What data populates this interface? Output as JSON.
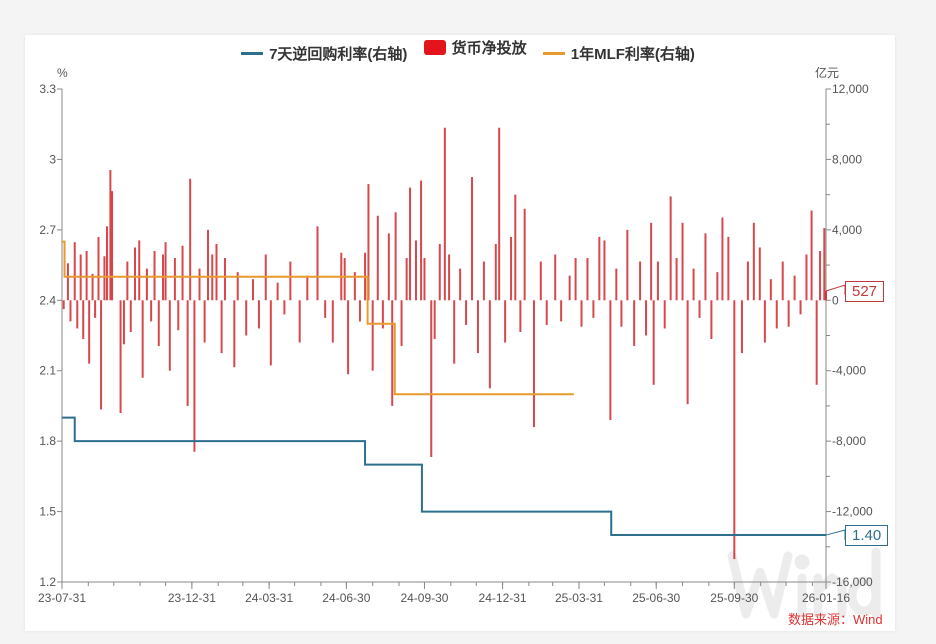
{
  "chart_data": {
    "type": "bar+line",
    "legend": {
      "position": "top",
      "items": [
        "7天逆回购利率(右轴)",
        "货币净投放",
        "1年MLF利率(右轴)"
      ]
    },
    "left_axis": {
      "unit": "%",
      "range": [
        1.2,
        3.3
      ],
      "ticks": [
        "3.3",
        "3",
        "2.7",
        "2.4",
        "2.1",
        "1.8",
        "1.5",
        "1.2"
      ]
    },
    "right_axis": {
      "unit": "亿元",
      "range": [
        -16000,
        12000
      ],
      "ticks": [
        "12,000",
        "8,000",
        "4,000",
        "0",
        "-4,000",
        "-8,000",
        "-12,000",
        "-16,000"
      ]
    },
    "x_axis": {
      "range": [
        "2023-07-31",
        "2026-01-16"
      ],
      "ticks": [
        "23-07-31",
        "23-12-31",
        "24-03-31",
        "24-06-30",
        "24-09-30",
        "24-12-31",
        "25-03-31",
        "25-06-30",
        "25-09-30",
        "26-01-16"
      ]
    },
    "series": [
      {
        "name": "7天逆回购利率(右轴)",
        "kind": "step-line",
        "axis": "left",
        "color": "#2e6f8e",
        "points": [
          [
            "2023-07-31",
            1.9
          ],
          [
            "2023-08-15",
            1.8
          ],
          [
            "2024-07-22",
            1.7
          ],
          [
            "2024-09-27",
            1.5
          ],
          [
            "2025-05-08",
            1.4
          ],
          [
            "2026-01-16",
            1.4
          ]
        ]
      },
      {
        "name": "1年MLF利率(右轴)",
        "kind": "step-line",
        "axis": "left",
        "color": "#e89a2c",
        "points": [
          [
            "2023-07-31",
            2.65
          ],
          [
            "2023-08-03",
            2.5
          ],
          [
            "2024-07-25",
            2.3
          ],
          [
            "2024-08-26",
            2.0
          ],
          [
            "2025-03-25",
            2.0
          ]
        ]
      },
      {
        "name": "货币净投放",
        "kind": "bar",
        "axis": "right",
        "color": "#d0282e",
        "points": [
          [
            "2023-08-02",
            -500
          ],
          [
            "2023-08-07",
            2100
          ],
          [
            "2023-08-10",
            -1200
          ],
          [
            "2023-08-15",
            3300
          ],
          [
            "2023-08-18",
            -1600
          ],
          [
            "2023-08-22",
            2600
          ],
          [
            "2023-08-25",
            -2200
          ],
          [
            "2023-08-29",
            2800
          ],
          [
            "2023-09-01",
            -3600
          ],
          [
            "2023-09-05",
            1500
          ],
          [
            "2023-09-08",
            -1000
          ],
          [
            "2023-09-12",
            3600
          ],
          [
            "2023-09-15",
            -6200
          ],
          [
            "2023-09-19",
            2500
          ],
          [
            "2023-09-22",
            4200
          ],
          [
            "2023-09-26",
            7400
          ],
          [
            "2023-09-28",
            6200
          ],
          [
            "2023-10-08",
            -6400
          ],
          [
            "2023-10-12",
            -2500
          ],
          [
            "2023-10-16",
            2200
          ],
          [
            "2023-10-20",
            -1800
          ],
          [
            "2023-10-25",
            3000
          ],
          [
            "2023-10-30",
            3400
          ],
          [
            "2023-11-03",
            -4400
          ],
          [
            "2023-11-08",
            1800
          ],
          [
            "2023-11-13",
            -1200
          ],
          [
            "2023-11-17",
            2800
          ],
          [
            "2023-11-22",
            -2600
          ],
          [
            "2023-11-27",
            2600
          ],
          [
            "2023-11-30",
            3300
          ],
          [
            "2023-12-05",
            -4000
          ],
          [
            "2023-12-11",
            2400
          ],
          [
            "2023-12-15",
            -1700
          ],
          [
            "2023-12-20",
            3100
          ],
          [
            "2023-12-26",
            -6000
          ],
          [
            "2023-12-29",
            6900
          ],
          [
            "2024-01-03",
            -8600
          ],
          [
            "2024-01-09",
            1800
          ],
          [
            "2024-01-15",
            -2400
          ],
          [
            "2024-01-19",
            4000
          ],
          [
            "2024-01-24",
            2600
          ],
          [
            "2024-01-29",
            3200
          ],
          [
            "2024-02-04",
            -3000
          ],
          [
            "2024-02-08",
            2400
          ],
          [
            "2024-02-19",
            -3800
          ],
          [
            "2024-02-23",
            1600
          ],
          [
            "2024-03-04",
            -2000
          ],
          [
            "2024-03-12",
            1200
          ],
          [
            "2024-03-19",
            -1600
          ],
          [
            "2024-03-27",
            2600
          ],
          [
            "2024-04-02",
            -3700
          ],
          [
            "2024-04-10",
            1000
          ],
          [
            "2024-04-18",
            -800
          ],
          [
            "2024-04-25",
            2200
          ],
          [
            "2024-05-06",
            -2400
          ],
          [
            "2024-05-15",
            1400
          ],
          [
            "2024-05-27",
            4200
          ],
          [
            "2024-06-05",
            -1000
          ],
          [
            "2024-06-14",
            -2400
          ],
          [
            "2024-06-24",
            2700
          ],
          [
            "2024-06-28",
            2400
          ],
          [
            "2024-07-02",
            -4200
          ],
          [
            "2024-07-10",
            1600
          ],
          [
            "2024-07-16",
            -1200
          ],
          [
            "2024-07-22",
            2700
          ],
          [
            "2024-07-26",
            6600
          ],
          [
            "2024-07-31",
            -4000
          ],
          [
            "2024-08-06",
            4800
          ],
          [
            "2024-08-12",
            -1600
          ],
          [
            "2024-08-19",
            3800
          ],
          [
            "2024-08-23",
            -6000
          ],
          [
            "2024-08-27",
            5000
          ],
          [
            "2024-09-03",
            -2600
          ],
          [
            "2024-09-09",
            2400
          ],
          [
            "2024-09-13",
            6400
          ],
          [
            "2024-09-20",
            3400
          ],
          [
            "2024-09-26",
            6800
          ],
          [
            "2024-09-30",
            2400
          ],
          [
            "2024-10-08",
            -8900
          ],
          [
            "2024-10-12",
            -2200
          ],
          [
            "2024-10-18",
            3200
          ],
          [
            "2024-10-24",
            9800
          ],
          [
            "2024-10-29",
            2600
          ],
          [
            "2024-11-04",
            -3600
          ],
          [
            "2024-11-11",
            1800
          ],
          [
            "2024-11-18",
            -1400
          ],
          [
            "2024-11-25",
            7000
          ],
          [
            "2024-12-02",
            -3000
          ],
          [
            "2024-12-09",
            2200
          ],
          [
            "2024-12-16",
            -5000
          ],
          [
            "2024-12-23",
            3200
          ],
          [
            "2024-12-27",
            9800
          ],
          [
            "2025-01-03",
            -2400
          ],
          [
            "2025-01-10",
            3600
          ],
          [
            "2025-01-15",
            6000
          ],
          [
            "2025-01-21",
            -1800
          ],
          [
            "2025-01-26",
            5200
          ],
          [
            "2025-02-06",
            -7200
          ],
          [
            "2025-02-14",
            2200
          ],
          [
            "2025-02-21",
            -1400
          ],
          [
            "2025-03-03",
            2600
          ],
          [
            "2025-03-10",
            -1200
          ],
          [
            "2025-03-20",
            1400
          ],
          [
            "2025-03-27",
            2400
          ],
          [
            "2025-04-03",
            -1500
          ],
          [
            "2025-04-10",
            2400
          ],
          [
            "2025-04-17",
            -1000
          ],
          [
            "2025-04-24",
            3600
          ],
          [
            "2025-04-30",
            3400
          ],
          [
            "2025-05-07",
            -6800
          ],
          [
            "2025-05-14",
            1800
          ],
          [
            "2025-05-20",
            -1500
          ],
          [
            "2025-05-27",
            4000
          ],
          [
            "2025-06-04",
            -2600
          ],
          [
            "2025-06-11",
            2200
          ],
          [
            "2025-06-18",
            -2000
          ],
          [
            "2025-06-24",
            4400
          ],
          [
            "2025-06-27",
            -4800
          ],
          [
            "2025-07-02",
            2200
          ],
          [
            "2025-07-10",
            -1600
          ],
          [
            "2025-07-17",
            5900
          ],
          [
            "2025-07-24",
            2400
          ],
          [
            "2025-07-31",
            4400
          ],
          [
            "2025-08-06",
            -5900
          ],
          [
            "2025-08-13",
            1800
          ],
          [
            "2025-08-20",
            -1000
          ],
          [
            "2025-08-27",
            3800
          ],
          [
            "2025-09-03",
            -2200
          ],
          [
            "2025-09-10",
            1600
          ],
          [
            "2025-09-16",
            4700
          ],
          [
            "2025-09-23",
            3600
          ],
          [
            "2025-09-30",
            -14700
          ],
          [
            "2025-10-09",
            -3000
          ],
          [
            "2025-10-16",
            2200
          ],
          [
            "2025-10-23",
            4400
          ],
          [
            "2025-10-30",
            3000
          ],
          [
            "2025-11-05",
            -2400
          ],
          [
            "2025-11-12",
            1200
          ],
          [
            "2025-11-19",
            -1600
          ],
          [
            "2025-11-26",
            2200
          ],
          [
            "2025-12-03",
            -1500
          ],
          [
            "2025-12-10",
            1400
          ],
          [
            "2025-12-17",
            -800
          ],
          [
            "2025-12-24",
            2600
          ],
          [
            "2025-12-30",
            5100
          ],
          [
            "2026-01-05",
            -4800
          ],
          [
            "2026-01-09",
            2800
          ],
          [
            "2026-01-14",
            4100
          ],
          [
            "2026-01-16",
            527
          ]
        ]
      }
    ],
    "annotations": {
      "last_net_injection": "527",
      "last_repo_rate": "1.40"
    },
    "source": "数据来源：Wind",
    "watermark": "Wind"
  }
}
